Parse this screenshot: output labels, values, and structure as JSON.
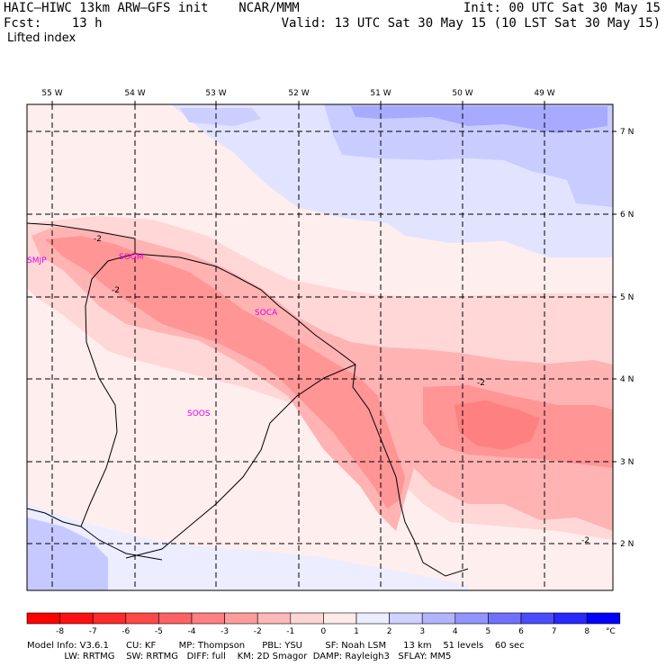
{
  "header": {
    "title": "HAIC–HIWC 13km ARW–GFS init    NCAR/MMM",
    "fcst": "Fcst:    13 h",
    "field": "Lifted index",
    "init": "Init: 00 UTC Sat 30 May 15",
    "valid": "Valid: 13 UTC Sat 30 May 15 (10 LST Sat 30 May 15)"
  },
  "map": {
    "lon_labels": [
      "55 W",
      "54 W",
      "53 W",
      "52 W",
      "51 W",
      "50 W",
      "49 W"
    ],
    "lat_labels": [
      "7 N",
      "6 N",
      "5 N",
      "4 N",
      "3 N",
      "2 N"
    ],
    "stations": [
      "SMJP",
      "SOGM",
      "SOCA",
      "SOOS"
    ],
    "contour_labels": [
      "-2",
      "-2",
      "-2",
      "-2"
    ]
  },
  "colorbar": {
    "tick_labels": [
      "-8",
      "-7",
      "-6",
      "-5",
      "-4",
      "-3",
      "-2",
      "-1",
      "0",
      "1",
      "2",
      "3",
      "4",
      "5",
      "6",
      "7",
      "8"
    ],
    "unit": "°C",
    "colors": [
      "#ff1010",
      "#ff2a2a",
      "#ff4848",
      "#ff6262",
      "#ff8080",
      "#ff9c9c",
      "#ffb8b8",
      "#ffd4d4",
      "#ffeaea",
      "#ecedff",
      "#d0d2ff",
      "#b2b4ff",
      "#9294ff",
      "#7070ff",
      "#4c4cff",
      "#2828ff",
      "#0a0aff"
    ]
  },
  "info": {
    "line1": "Model Info: V3.6.1      CU: KF        MP: Thompson      PBL: YSU        SF: Noah LSM      13 km    51 levels    60 sec",
    "line2": "             LW: RRTMG    SW: RRTMG   DIFF: full    KM: 2D Smagor  DAMP: Rayleigh3   SFLAY: MM5"
  }
}
